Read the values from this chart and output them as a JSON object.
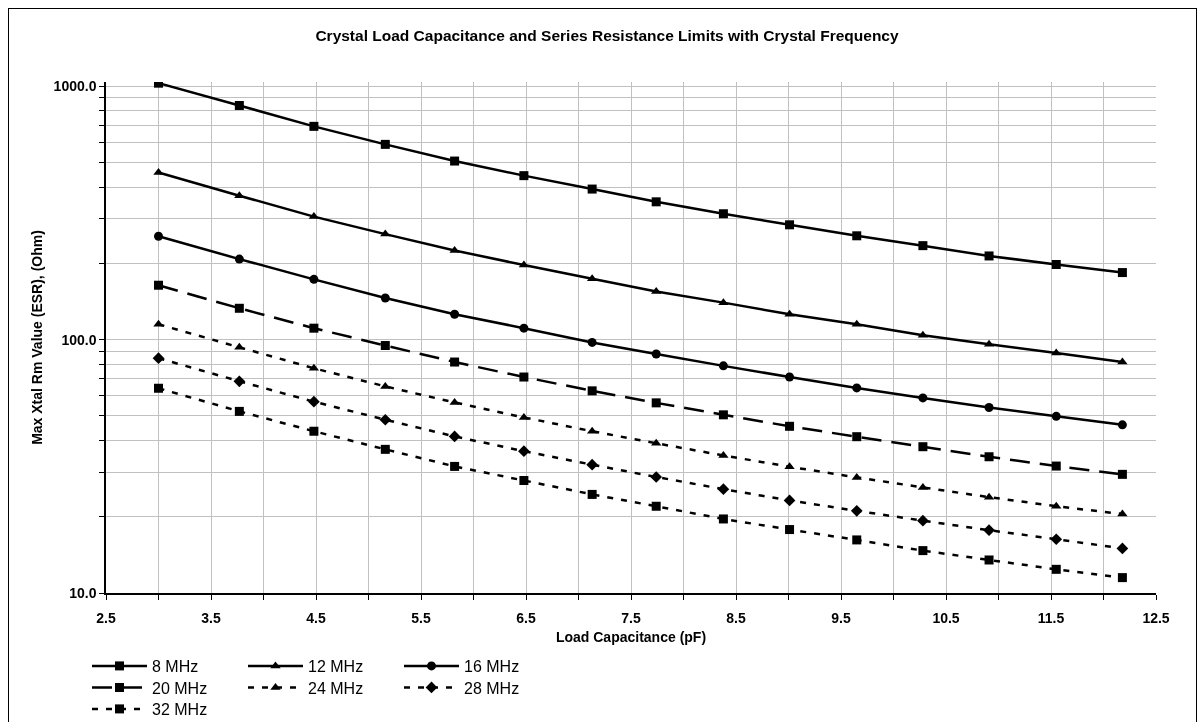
{
  "chart_data": {
    "type": "line",
    "title": "Crystal Load Capacitance and Series Resistance Limits with Crystal Frequency",
    "xlabel": "Load Capacitance (pF)",
    "ylabel": "Max Xtal Rm Value (ESR), (Ohm)",
    "x": [
      3.0,
      3.77,
      4.48,
      5.16,
      5.82,
      6.48,
      7.13,
      7.74,
      8.38,
      9.01,
      9.65,
      10.28,
      10.91,
      11.55,
      12.18
    ],
    "series": [
      {
        "name": "8 MHz",
        "color": "#000000",
        "marker": "square",
        "line_style": "solid",
        "values": [
          1029,
          840,
          695,
          590,
          507,
          444,
          393,
          350,
          314,
          284,
          257,
          235,
          214,
          198,
          184
        ]
      },
      {
        "name": "12 MHz",
        "color": "#000000",
        "marker": "triangle",
        "line_style": "solid",
        "values": [
          457,
          370,
          306,
          261,
          225,
          197,
          174,
          155,
          140,
          126,
          115,
          104,
          96,
          88.5,
          81.6
        ]
      },
      {
        "name": "16 MHz",
        "color": "#000000",
        "marker": "circle",
        "line_style": "solid",
        "values": [
          256,
          208,
          173,
          146,
          126,
          111,
          97.5,
          87.8,
          78.8,
          71.2,
          64.5,
          58.9,
          54.0,
          49.8,
          46.1
        ]
      },
      {
        "name": "20 MHz",
        "color": "#000000",
        "marker": "square",
        "line_style": "dashed",
        "values": [
          164,
          133,
          111,
          94.8,
          81.6,
          71.2,
          62.8,
          56.3,
          50.5,
          45.5,
          41.4,
          37.8,
          34.5,
          31.7,
          29.4
        ]
      },
      {
        "name": "24 MHz",
        "color": "#000000",
        "marker": "triangle",
        "line_style": "dotted",
        "values": [
          115,
          93.3,
          77.1,
          65.4,
          56.5,
          49.3,
          43.5,
          39.0,
          34.9,
          31.5,
          28.6,
          26.1,
          23.9,
          22.0,
          20.5
        ]
      },
      {
        "name": "28 MHz",
        "color": "#000000",
        "marker": "diamond",
        "line_style": "dotted",
        "values": [
          84.5,
          68.5,
          56.9,
          48.3,
          41.5,
          36.3,
          32.1,
          28.7,
          25.7,
          23.2,
          21.1,
          19.3,
          17.7,
          16.3,
          15.0
        ]
      },
      {
        "name": "32 MHz",
        "color": "#000000",
        "marker": "square",
        "line_style": "dotted",
        "values": [
          64.3,
          52.1,
          43.5,
          36.9,
          31.6,
          27.8,
          24.5,
          22.0,
          19.6,
          17.8,
          16.2,
          14.7,
          13.5,
          12.4,
          11.5
        ]
      }
    ],
    "xlim": [
      2.5,
      12.5
    ],
    "xticks": [
      2.5,
      {
        "value": 3,
        "label": null
      },
      3.5,
      {
        "value": 4,
        "label": null
      },
      4.5,
      {
        "value": 5,
        "label": null
      },
      5.5,
      {
        "value": 6,
        "label": null
      },
      6.5,
      {
        "value": 7,
        "label": null
      },
      7.5,
      {
        "value": 8,
        "label": null
      },
      8.5,
      {
        "value": 9,
        "label": null
      },
      9.5,
      {
        "value": 10,
        "label": null
      },
      10.5,
      {
        "value": 11,
        "label": null
      },
      11.5,
      {
        "value": 12,
        "label": null
      },
      12.5
    ],
    "ylim": [
      10,
      1040
    ],
    "yticks": [
      {
        "value": 10,
        "label": "10.0"
      },
      {
        "value": 20,
        "label": null
      },
      {
        "value": 30,
        "label": null
      },
      {
        "value": 40,
        "label": null
      },
      {
        "value": 50,
        "label": null
      },
      {
        "value": 60,
        "label": null
      },
      {
        "value": 70,
        "label": null
      },
      {
        "value": 80,
        "label": null
      },
      {
        "value": 90,
        "label": null
      },
      {
        "value": 100,
        "label": "100.0"
      },
      {
        "value": 200,
        "label": null
      },
      {
        "value": 300,
        "label": null
      },
      {
        "value": 400,
        "label": null
      },
      {
        "value": 500,
        "label": null
      },
      {
        "value": 600,
        "label": null
      },
      {
        "value": 700,
        "label": null
      },
      {
        "value": 800,
        "label": null
      },
      {
        "value": 900,
        "label": null
      },
      {
        "value": 1000,
        "label": "1000.0"
      }
    ],
    "log": "y",
    "grid": true,
    "legend": "bottom left"
  }
}
